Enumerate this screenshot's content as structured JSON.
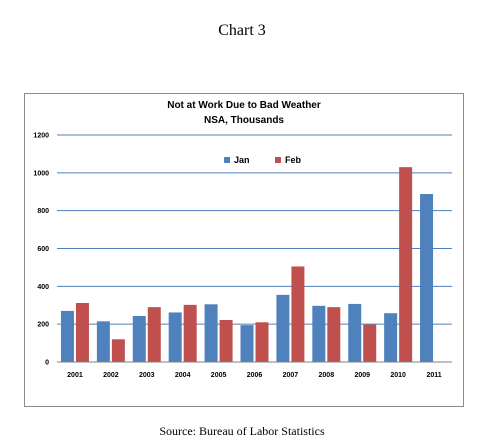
{
  "page": {
    "heading": "Chart 3",
    "source": "Source: Bureau of Labor Statistics"
  },
  "chart_data": {
    "type": "bar",
    "title": "Not at Work Due to Bad Weather",
    "subtitle": "NSA, Thousands",
    "categories": [
      "2001",
      "2002",
      "2003",
      "2004",
      "2005",
      "2006",
      "2007",
      "2008",
      "2009",
      "2010",
      "2011"
    ],
    "series": [
      {
        "name": "Jan",
        "color": "#4f81bd",
        "values": [
          270,
          215,
          243,
          262,
          305,
          195,
          355,
          297,
          307,
          258,
          888
        ]
      },
      {
        "name": "Feb",
        "color": "#c0504d",
        "values": [
          312,
          120,
          290,
          302,
          222,
          210,
          505,
          290,
          198,
          1030,
          null
        ]
      }
    ],
    "ylim": [
      0,
      1200
    ],
    "yticks": [
      0,
      200,
      400,
      600,
      800,
      1000,
      1200
    ],
    "grid": true,
    "legend": "top-center",
    "xlabel": "",
    "ylabel": ""
  }
}
